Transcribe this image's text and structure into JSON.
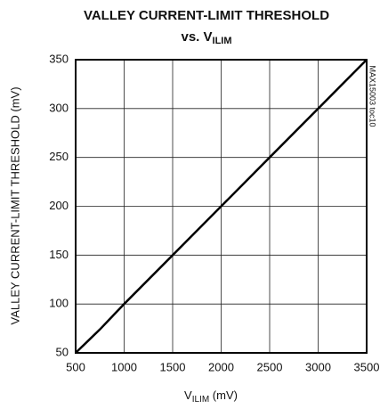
{
  "chart_data": {
    "type": "line",
    "title": "VALLEY CURRENT-LIMIT THRESHOLD",
    "subtitle": {
      "text": "vs. V",
      "subscript": "ILIM"
    },
    "xlabel": {
      "text": "V",
      "subscript": "ILIM",
      "unit": " (mV)"
    },
    "ylabel": "VALLEY CURRENT-LIMIT THRESHOLD (mV)",
    "annotation": "MAX15003 toc10",
    "x": [
      500,
      750,
      1000,
      1500,
      2000,
      2500,
      3000,
      3500
    ],
    "values": [
      50,
      74,
      100,
      150,
      200,
      250,
      300,
      350
    ],
    "color": "#000000",
    "xlim": [
      500,
      3500
    ],
    "xticks": [
      500,
      1000,
      1500,
      2000,
      2500,
      3000,
      3500
    ],
    "ylim": [
      50,
      350
    ],
    "yticks": [
      50,
      100,
      150,
      200,
      250,
      300,
      350
    ],
    "grid": true
  }
}
